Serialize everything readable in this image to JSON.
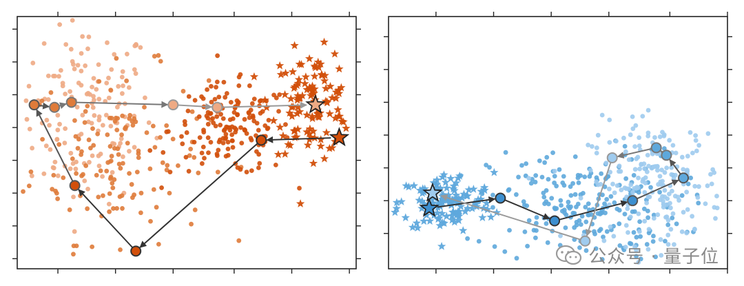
{
  "chart_data": [
    {
      "type": "scatter",
      "xlim": [
        0,
        100
      ],
      "ylim": [
        0,
        100
      ],
      "x_ticks": [
        12,
        29,
        46,
        64,
        81,
        98
      ],
      "y_ticks": [
        4,
        17,
        30,
        43,
        56,
        69,
        82,
        95
      ],
      "tick_labels": "none",
      "grid": false,
      "legend": "none",
      "colors": {
        "dark": "#d24f0a",
        "mid": "#df7b3a",
        "light": "#eeaa84",
        "lightest": "#f3c4a6"
      },
      "clusters": [
        {
          "marker": "circle",
          "color": "light",
          "n": 150,
          "cx": 20,
          "cy": 62,
          "sx": 10,
          "sy": 18
        },
        {
          "marker": "circle",
          "color": "mid",
          "n": 140,
          "cx": 30,
          "cy": 45,
          "sx": 13,
          "sy": 17
        },
        {
          "marker": "circle",
          "color": "dark",
          "n": 160,
          "cx": 63,
          "cy": 55,
          "sx": 9,
          "sy": 9
        },
        {
          "marker": "star",
          "color": "dark",
          "n": 120,
          "cx": 87,
          "cy": 66,
          "sx": 6,
          "sy": 10
        }
      ],
      "trajectories": [
        {
          "points": [
            [
              95,
              52
            ],
            [
              72,
              51
            ],
            [
              35,
              7
            ],
            [
              17,
              33
            ],
            [
              5,
              65
            ],
            [
              11,
              64
            ],
            [
              16,
              66
            ],
            [
              46,
              65
            ],
            [
              59,
              64
            ],
            [
              88,
              65
            ]
          ],
          "markers": [
            "star",
            "circle",
            "circle",
            "circle",
            "circle",
            "circle",
            "circle",
            "circle",
            "circle",
            "star"
          ]
        }
      ]
    },
    {
      "type": "scatter",
      "xlim": [
        0,
        100
      ],
      "ylim": [
        0,
        100
      ],
      "x_ticks": [
        14,
        31,
        48,
        65,
        83,
        100
      ],
      "y_ticks": [
        14,
        27,
        40,
        53,
        66,
        79,
        92
      ],
      "tick_labels": "none",
      "grid": false,
      "legend": "none",
      "colors": {
        "dark": "#3c8fd0",
        "mid": "#5ea8dc",
        "light": "#9fcbee",
        "lightest": "#c3e0f5"
      },
      "clusters": [
        {
          "marker": "star",
          "color": "mid",
          "n": 130,
          "cx": 17,
          "cy": 26,
          "sx": 7,
          "sy": 6
        },
        {
          "marker": "circle",
          "color": "mid",
          "n": 230,
          "cx": 58,
          "cy": 25,
          "sx": 14,
          "sy": 11
        },
        {
          "marker": "circle",
          "color": "light",
          "n": 200,
          "cx": 79,
          "cy": 34,
          "sx": 10,
          "sy": 12
        }
      ],
      "trajectories": [
        {
          "points": [
            [
              12,
              24
            ],
            [
              33,
              28
            ],
            [
              49,
              19
            ],
            [
              72,
              27
            ],
            [
              87,
              36
            ],
            [
              82,
              45
            ],
            [
              79,
              48
            ],
            [
              66,
              44
            ],
            [
              58,
              11
            ],
            [
              13,
              30
            ]
          ],
          "markers": [
            "star",
            "circle",
            "circle",
            "circle",
            "circle",
            "circle",
            "circle",
            "circle",
            "circle",
            "star"
          ]
        }
      ]
    }
  ],
  "watermark": {
    "text": "公众号 · 量子位",
    "icon": "wechat-icon",
    "color": "#8a8a8a"
  }
}
